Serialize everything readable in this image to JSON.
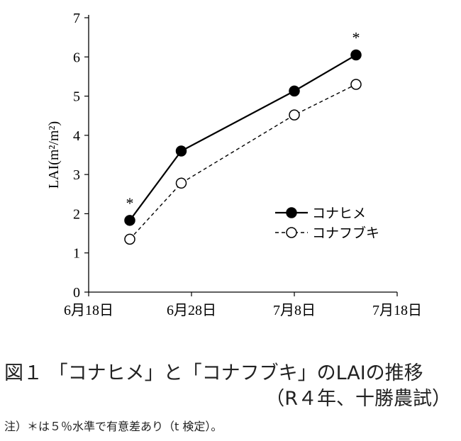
{
  "chart_data": {
    "type": "line",
    "title": "",
    "xlabel": "",
    "ylabel": "LAI(m²/m²)",
    "ylim": [
      0,
      7
    ],
    "yticks": [
      "0",
      "1",
      "2",
      "3",
      "4",
      "5",
      "6",
      "7"
    ],
    "xlim": [
      "2022-06-18",
      "2022-07-18"
    ],
    "xticks": [
      {
        "date": "2022-06-18",
        "label": "6月18日"
      },
      {
        "date": "2022-06-28",
        "label": "6月28日"
      },
      {
        "date": "2022-07-08",
        "label": "7月8日"
      },
      {
        "date": "2022-07-18",
        "label": "7月18日"
      }
    ],
    "series": [
      {
        "name": "コナヒメ",
        "marker": "filled-circle",
        "line": "solid",
        "color": "#000000",
        "x": [
          "2022-06-22",
          "2022-06-27",
          "2022-07-08",
          "2022-07-14"
        ],
        "y": [
          1.83,
          3.6,
          5.13,
          6.05
        ]
      },
      {
        "name": "コナフブキ",
        "marker": "open-circle",
        "line": "dashed",
        "color": "#000000",
        "x": [
          "2022-06-22",
          "2022-06-27",
          "2022-07-08",
          "2022-07-14"
        ],
        "y": [
          1.35,
          2.78,
          4.52,
          5.3
        ]
      }
    ],
    "annotations": [
      {
        "text": "*",
        "x": "2022-06-22",
        "y": 1.83
      },
      {
        "text": "*",
        "x": "2022-07-14",
        "y": 6.05
      }
    ],
    "legend_position": "right-middle",
    "grid": false
  },
  "caption": {
    "title": "図１ 「コナヒメ」と「コナフブキ」のLAIの推移",
    "subtitle": "（R４年、十勝農試）",
    "note": "注）＊は５％水準で有意差あり（t 検定）。"
  }
}
